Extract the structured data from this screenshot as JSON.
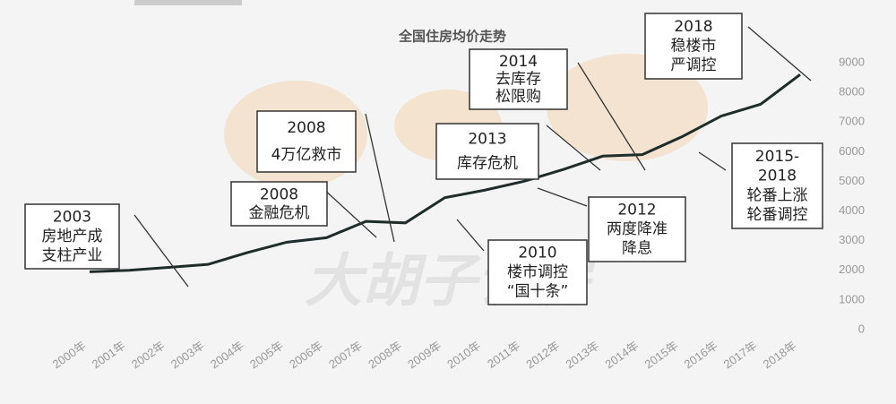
{
  "chart_data": {
    "type": "line",
    "title": "全国住房均价走势",
    "watermark": "大胡子说房",
    "categories": [
      "2000年",
      "2001年",
      "2002年",
      "2003年",
      "2004年",
      "2005年",
      "2006年",
      "2007年",
      "2008年",
      "2009年",
      "2010年",
      "2011年",
      "2012年",
      "2013年",
      "2014年",
      "2015年",
      "2016年",
      "2017年",
      "2018年"
    ],
    "series": [
      {
        "name": "全国住房均价",
        "color": "#1f2d2a",
        "values": [
          1950,
          2000,
          2100,
          2200,
          2600,
          2950,
          3100,
          3650,
          3600,
          4450,
          4700,
          5000,
          5400,
          5850,
          5900,
          6500,
          7200,
          7600,
          8600
        ]
      }
    ],
    "ylim": [
      0,
      9000
    ],
    "yticks": [
      0,
      1000,
      2000,
      3000,
      4000,
      5000,
      6000,
      7000,
      8000,
      9000
    ],
    "annotations": [
      {
        "lines": [
          "2003",
          "房地产成",
          "支柱产业"
        ]
      },
      {
        "lines": [
          "2008",
          "金融危机"
        ]
      },
      {
        "lines": [
          "2008",
          "4万亿救市"
        ]
      },
      {
        "lines": [
          "2013",
          "库存危机"
        ]
      },
      {
        "lines": [
          "2014",
          "去库存",
          "松限购"
        ]
      },
      {
        "lines": [
          "2010",
          "楼市调控",
          "“国十条”"
        ]
      },
      {
        "lines": [
          "2012",
          "两度降准",
          "降息"
        ]
      },
      {
        "lines": [
          "2018",
          "稳楼市",
          "严调控"
        ]
      },
      {
        "lines": [
          "2015-",
          "2018",
          "轮番上涨",
          "轮番调控"
        ]
      }
    ]
  }
}
